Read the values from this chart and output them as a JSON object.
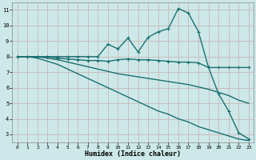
{
  "xlabel": "Humidex (Indice chaleur)",
  "background_color": "#cde8e8",
  "plot_bg_color": "#cde8e8",
  "line_color": "#1a7070",
  "grid_color": "#c8b8b8",
  "xlim": [
    -0.5,
    23.5
  ],
  "ylim": [
    2.5,
    11.5
  ],
  "yticks": [
    3,
    4,
    5,
    6,
    7,
    8,
    9,
    10,
    11
  ],
  "xticks": [
    0,
    1,
    2,
    3,
    4,
    5,
    6,
    7,
    8,
    9,
    10,
    11,
    12,
    13,
    14,
    15,
    16,
    17,
    18,
    19,
    20,
    21,
    22,
    23
  ],
  "series": [
    {
      "x": [
        0,
        1,
        2,
        3,
        4,
        5,
        6,
        7,
        8,
        9,
        10,
        11,
        12,
        13,
        14,
        15,
        16,
        17,
        18,
        19,
        20,
        21,
        22,
        23
      ],
      "y": [
        8,
        8,
        8,
        8,
        8,
        8,
        8,
        8,
        8,
        8.8,
        8.5,
        9.2,
        8.3,
        9.25,
        9.6,
        9.8,
        11.1,
        10.8,
        9.6,
        7.3,
        5.6,
        4.5,
        3.1,
        2.7
      ],
      "marker": true,
      "markersize": 2.5,
      "linewidth": 1.0
    },
    {
      "x": [
        0,
        1,
        2,
        3,
        4,
        5,
        6,
        7,
        8,
        9,
        10,
        11,
        12,
        13,
        14,
        15,
        16,
        17,
        18,
        19,
        20,
        21,
        22,
        23
      ],
      "y": [
        8,
        8,
        8,
        8,
        7.9,
        7.85,
        7.8,
        7.75,
        7.75,
        7.7,
        7.8,
        7.85,
        7.8,
        7.8,
        7.75,
        7.7,
        7.65,
        7.65,
        7.6,
        7.3,
        7.3,
        7.3,
        7.3,
        7.3
      ],
      "marker": true,
      "markersize": 2.5,
      "linewidth": 1.0
    },
    {
      "x": [
        0,
        1,
        2,
        3,
        4,
        5,
        6,
        7,
        8,
        9,
        10,
        11,
        12,
        13,
        14,
        15,
        16,
        17,
        18,
        19,
        20,
        21,
        22,
        23
      ],
      "y": [
        8,
        8,
        8,
        7.9,
        7.8,
        7.65,
        7.5,
        7.35,
        7.2,
        7.05,
        6.9,
        6.8,
        6.7,
        6.6,
        6.5,
        6.4,
        6.3,
        6.2,
        6.05,
        5.9,
        5.7,
        5.5,
        5.2,
        5.0
      ],
      "marker": false,
      "markersize": 0,
      "linewidth": 1.0
    },
    {
      "x": [
        0,
        1,
        2,
        3,
        4,
        5,
        6,
        7,
        8,
        9,
        10,
        11,
        12,
        13,
        14,
        15,
        16,
        17,
        18,
        19,
        20,
        21,
        22,
        23
      ],
      "y": [
        8,
        8,
        7.9,
        7.7,
        7.5,
        7.2,
        6.9,
        6.6,
        6.3,
        6.0,
        5.7,
        5.4,
        5.1,
        4.8,
        4.5,
        4.3,
        4.0,
        3.8,
        3.5,
        3.3,
        3.1,
        2.9,
        2.7,
        2.6
      ],
      "marker": false,
      "markersize": 0,
      "linewidth": 1.0
    }
  ]
}
